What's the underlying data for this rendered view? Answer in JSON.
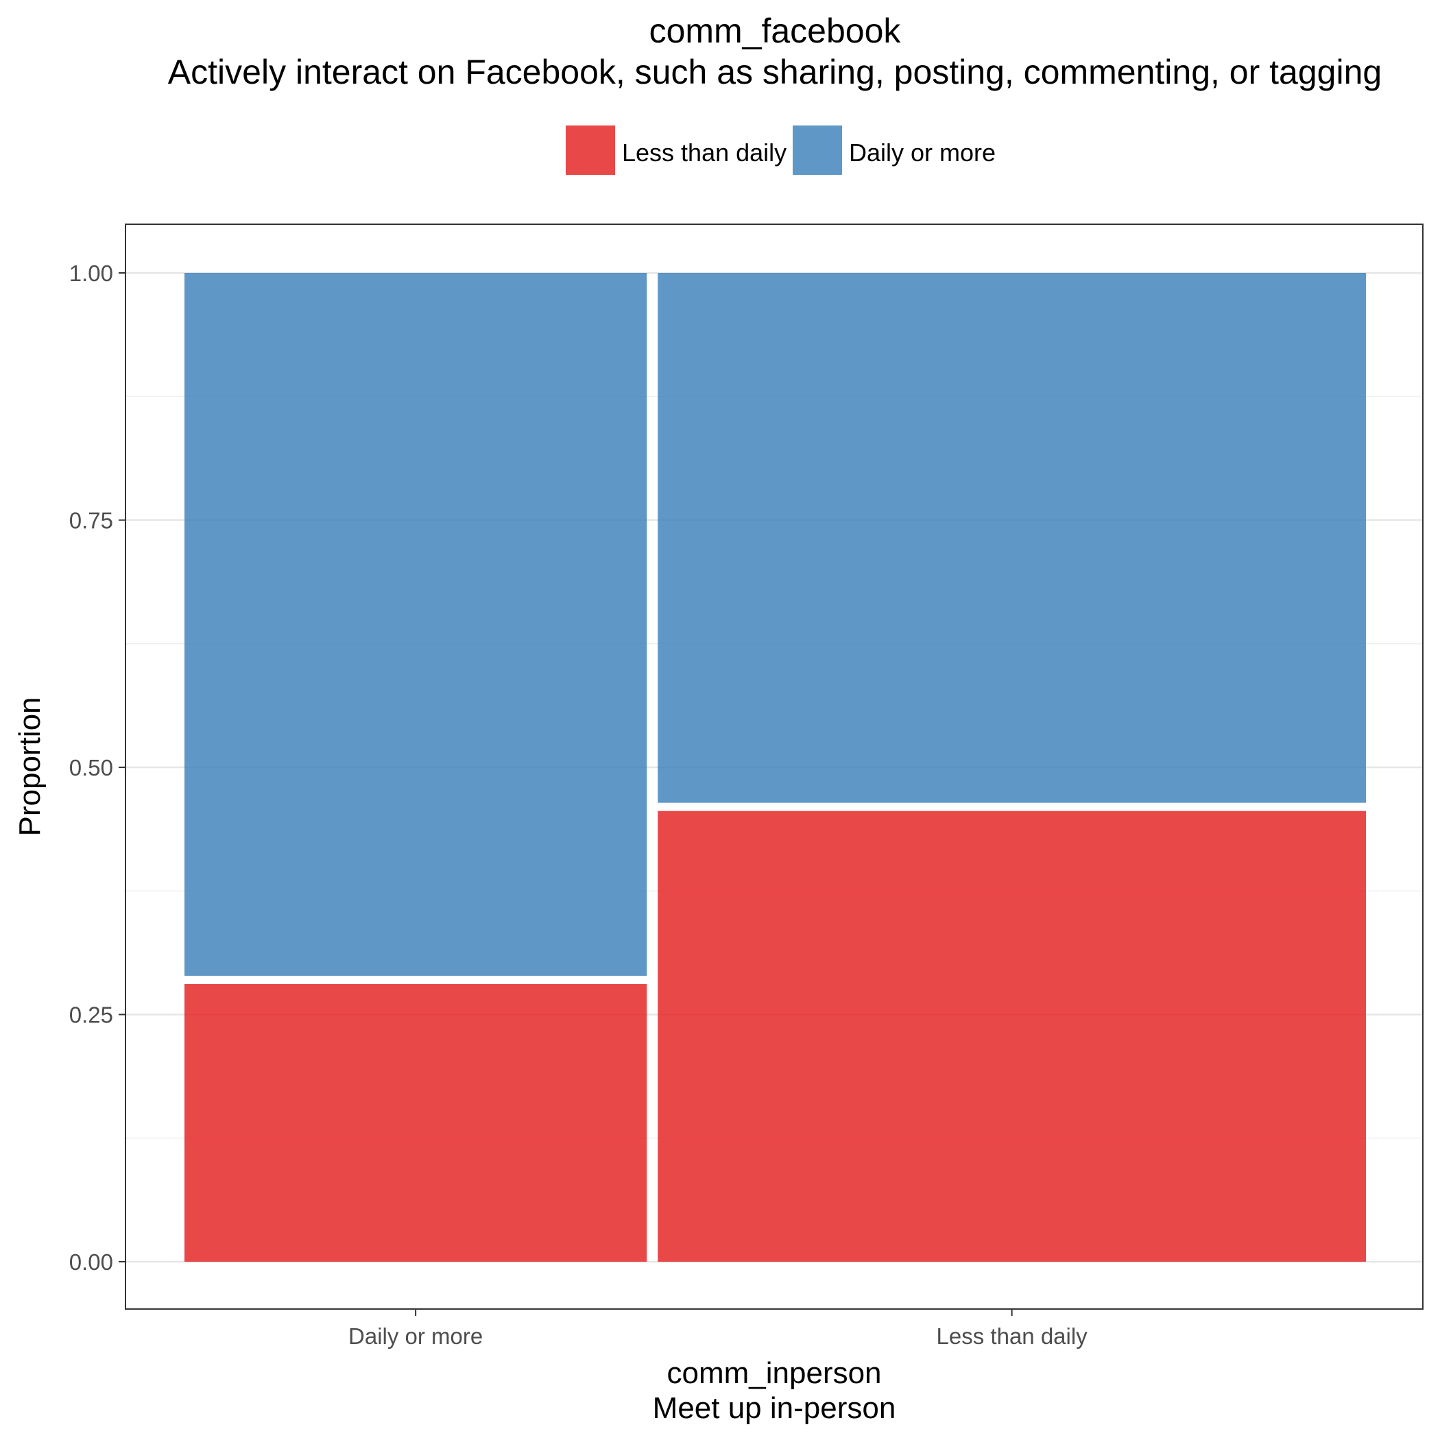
{
  "chart_data": {
    "type": "mosaic",
    "title": "comm_facebook",
    "subtitle": "Actively interact on Facebook, such as sharing, posting, commenting, or tagging",
    "xlabel": "comm_inperson",
    "xlabel_sub": "Meet up in-person",
    "ylabel": "Proportion",
    "ylim": [
      0,
      1
    ],
    "yticks": [
      0.0,
      0.25,
      0.5,
      0.75,
      1.0
    ],
    "ytick_labels": [
      "0.00",
      "0.25",
      "0.50",
      "0.75",
      "1.00"
    ],
    "grid": true,
    "legend_position": "top",
    "categories": [
      "Daily or more",
      "Less than daily"
    ],
    "category_widths": [
      0.395,
      0.605
    ],
    "series": [
      {
        "name": "Less than daily",
        "color": "#E41A1C",
        "values": [
          0.285,
          0.46
        ]
      },
      {
        "name": "Daily or more",
        "color": "#377EB8",
        "values": [
          0.715,
          0.54
        ]
      }
    ]
  }
}
